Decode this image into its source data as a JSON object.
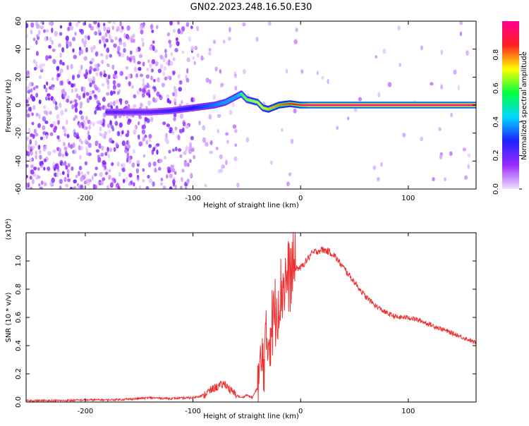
{
  "page_title": "GN02.2023.248.16.50.E30",
  "chart_data": [
    {
      "type": "heatmap",
      "xlabel": "Height of straight line (km)",
      "ylabel": "Frequency (Hz)",
      "xlim": [
        -255,
        163
      ],
      "ylim": [
        -60,
        60
      ],
      "x_ticks": [
        -200,
        -100,
        0,
        100
      ],
      "y_ticks": [
        -60,
        -40,
        -20,
        0,
        20,
        40,
        60
      ],
      "colorbar": {
        "label": "Normalized spectral amplitude",
        "range": [
          0.0,
          1.0
        ],
        "ticks": [
          0.0,
          0.2,
          0.4,
          0.6,
          0.8
        ],
        "colormap": [
          "#f0e0ff",
          "#9a2cff",
          "#2020ff",
          "#00d8ff",
          "#00ff40",
          "#ffff00",
          "#ff2020",
          "#ff0090"
        ]
      },
      "ridge": [
        {
          "x": -180,
          "f": -5,
          "amp": 0.3
        },
        {
          "x": -160,
          "f": -5,
          "amp": 0.3
        },
        {
          "x": -140,
          "f": -5,
          "amp": 0.3
        },
        {
          "x": -120,
          "f": -4,
          "amp": 0.35
        },
        {
          "x": -100,
          "f": -2,
          "amp": 0.4
        },
        {
          "x": -90,
          "f": -1,
          "amp": 0.45
        },
        {
          "x": -80,
          "f": 0,
          "amp": 0.5
        },
        {
          "x": -70,
          "f": 2,
          "amp": 0.55
        },
        {
          "x": -60,
          "f": 6,
          "amp": 0.55
        },
        {
          "x": -55,
          "f": 8,
          "amp": 0.6
        },
        {
          "x": -50,
          "f": 4,
          "amp": 0.65
        },
        {
          "x": -40,
          "f": 2,
          "amp": 0.7
        },
        {
          "x": -35,
          "f": -2,
          "amp": 0.7
        },
        {
          "x": -30,
          "f": -3,
          "amp": 0.75
        },
        {
          "x": -20,
          "f": 0,
          "amp": 0.8
        },
        {
          "x": -10,
          "f": 1,
          "amp": 0.85
        },
        {
          "x": 0,
          "f": 0,
          "amp": 0.9
        },
        {
          "x": 10,
          "f": 0,
          "amp": 1.0
        },
        {
          "x": 163,
          "f": 0,
          "amp": 1.0
        }
      ]
    },
    {
      "type": "line",
      "xlabel": "Height of straight line (km)",
      "ylabel": "SNR (10 * v/v)",
      "y_multiplier": "(x10⁴)",
      "xlim": [
        -255,
        163
      ],
      "ylim": [
        0,
        1.2
      ],
      "x_ticks": [
        -200,
        -100,
        0,
        100
      ],
      "y_ticks": [
        0.0,
        0.2,
        0.4,
        0.6,
        0.8,
        1.0
      ],
      "color": "#ee3333",
      "series": [
        {
          "x": [
            -255,
            -240,
            -220,
            -200,
            -180,
            -160,
            -140,
            -120,
            -100,
            -90,
            -80,
            -70,
            -65,
            -60,
            -55,
            -50,
            -45,
            -40,
            -35,
            -30,
            -25,
            -20,
            -15,
            -10,
            -5,
            0,
            5,
            10,
            15,
            20,
            25,
            30,
            35,
            40,
            50,
            60,
            70,
            80,
            90,
            100,
            110,
            120,
            130,
            140,
            150,
            163
          ],
          "y": [
            0.01,
            0.01,
            0.01,
            0.015,
            0.015,
            0.02,
            0.03,
            0.025,
            0.03,
            0.05,
            0.1,
            0.13,
            0.08,
            0.05,
            0.03,
            0.05,
            0.03,
            0.1,
            0.3,
            0.45,
            0.6,
            0.75,
            0.85,
            0.9,
            0.95,
            0.95,
            1.0,
            1.05,
            1.07,
            1.08,
            1.07,
            1.05,
            1.0,
            0.95,
            0.85,
            0.75,
            0.68,
            0.63,
            0.6,
            0.6,
            0.58,
            0.55,
            0.52,
            0.49,
            0.46,
            0.42
          ]
        }
      ]
    }
  ]
}
